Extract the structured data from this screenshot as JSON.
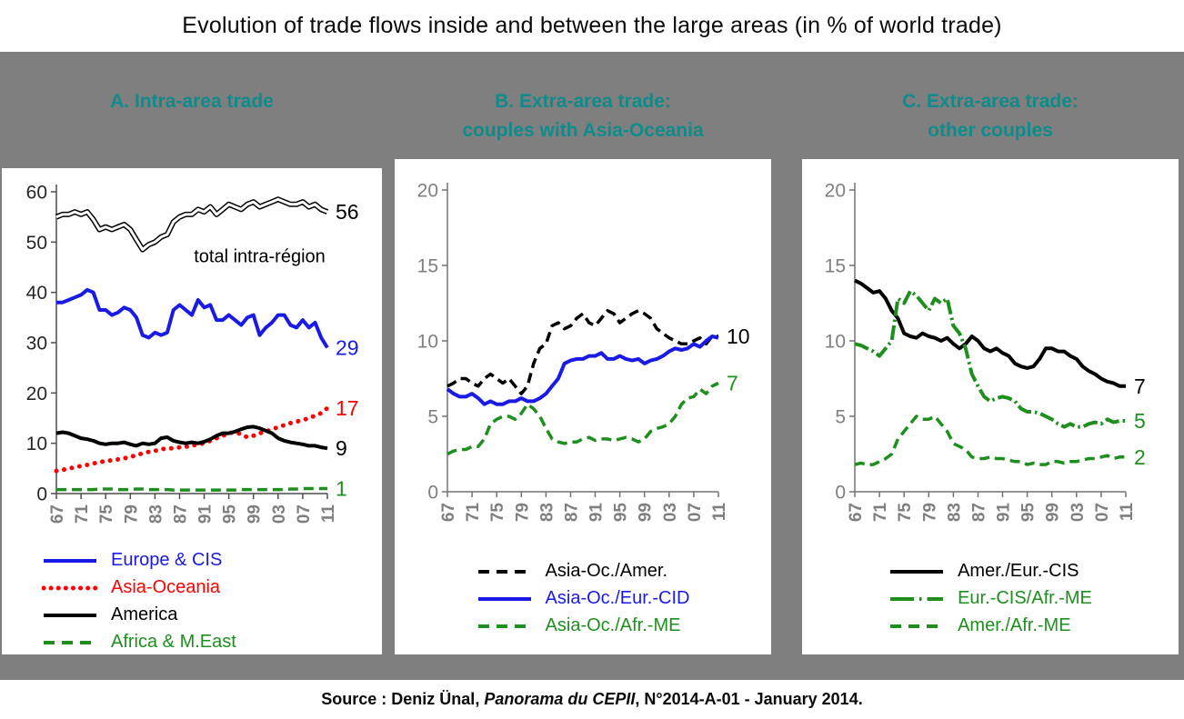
{
  "title": "Evolution of trade flows inside and between the large areas (in % of world trade)",
  "source": {
    "prefix": "Source : Deniz Ünal, ",
    "italic": "Panorama du CEPII",
    "suffix": ", N°2014-A-01 - January 2014."
  },
  "colors": {
    "background": "#7f7f7f",
    "panel_background": "#ffffff",
    "heading_teal": "#0e8c8c",
    "blue": "#1a1ae6",
    "red": "#ff0000",
    "green": "#1e8f1e",
    "black": "#000000",
    "tick_gray": "#7f7f7f"
  },
  "chart_data": [
    {
      "type": "line",
      "title_line1": "A. Intra-area trade",
      "title_line2": "",
      "x_start": 1967,
      "x_tick_years": [
        1967,
        1971,
        1975,
        1979,
        1983,
        1987,
        1991,
        1995,
        1999,
        2003,
        2007,
        2011
      ],
      "x_tick_labels": [
        "67",
        "71",
        "75",
        "79",
        "83",
        "87",
        "91",
        "95",
        "99",
        "03",
        "07",
        "11"
      ],
      "ylim": [
        0,
        60
      ],
      "yticks": [
        0,
        10,
        20,
        30,
        40,
        50,
        60
      ],
      "ytick_color": "#262626",
      "axis_color": "#4d4d4d",
      "grid": false,
      "legend_position": "bottom",
      "legend_align": "left",
      "annotation": {
        "text": "total intra-région",
        "x": 2000,
        "y": 46
      },
      "series": [
        {
          "name": "total intra-région",
          "style": "double",
          "color": "#000000",
          "end_label": "56",
          "values": [
            55,
            55.5,
            55.5,
            56,
            55.5,
            56,
            54.5,
            52.5,
            53,
            52.5,
            53,
            53.5,
            52.5,
            50.5,
            48.5,
            49.5,
            50,
            51,
            51.5,
            54,
            55,
            55.5,
            55.5,
            56.5,
            56,
            57,
            55.5,
            56.5,
            57.5,
            57,
            56.5,
            57.5,
            58,
            57,
            57.5,
            58,
            58.5,
            58,
            57.5,
            57.5,
            58,
            57,
            57.5,
            56.5,
            56
          ]
        },
        {
          "name": "Europe & CIS",
          "style": "solid",
          "color": "#1a1ae6",
          "end_label": "29",
          "values": [
            38,
            38,
            38.5,
            39,
            39.5,
            40.5,
            40,
            36.5,
            36.5,
            35.5,
            36,
            37,
            36.5,
            35,
            31.5,
            31,
            32,
            31.5,
            32,
            36.5,
            37.5,
            36.5,
            35.5,
            38.5,
            37,
            37.5,
            34.5,
            34.5,
            35.5,
            34.5,
            33.5,
            35,
            35.5,
            31.5,
            33,
            34,
            35.5,
            35.5,
            33.5,
            33,
            34.5,
            33,
            34,
            31,
            29
          ]
        },
        {
          "name": "Asia-Oceania",
          "style": "dotted",
          "color": "#ff0000",
          "end_label": "17",
          "values": [
            4.5,
            4.7,
            5,
            5.2,
            5.5,
            5.7,
            6,
            6.2,
            6.5,
            6.6,
            6.8,
            7,
            7.3,
            7.6,
            8,
            8.3,
            8.5,
            8.8,
            9,
            9,
            9.2,
            9.3,
            9.5,
            9.8,
            10,
            10.5,
            11,
            11.5,
            12,
            12.2,
            11.8,
            11.2,
            11.5,
            12,
            12.3,
            12.8,
            13.2,
            13.6,
            14,
            14.3,
            14.6,
            15,
            15.5,
            16,
            17
          ]
        },
        {
          "name": "America",
          "style": "solid",
          "color": "#000000",
          "end_label": "9",
          "values": [
            12,
            12.2,
            12,
            11.5,
            11,
            10.8,
            10.5,
            10,
            9.8,
            10,
            10,
            10.2,
            9.8,
            9.5,
            10,
            9.8,
            10,
            11,
            11.2,
            10.5,
            10.2,
            10,
            10.2,
            10,
            10.3,
            10.8,
            11.5,
            12,
            12,
            12.3,
            12.8,
            13.2,
            13.3,
            13,
            12.5,
            12,
            11,
            10.5,
            10.2,
            10,
            9.8,
            9.5,
            9.5,
            9.2,
            9
          ]
        },
        {
          "name": "Africa & M.East",
          "style": "dashed",
          "color": "#1e8f1e",
          "end_label": "1",
          "values": [
            0.8,
            0.8,
            0.8,
            0.8,
            0.8,
            0.8,
            0.8,
            0.9,
            0.9,
            0.9,
            0.8,
            0.8,
            0.8,
            0.9,
            0.9,
            0.8,
            0.8,
            0.8,
            0.8,
            0.7,
            0.7,
            0.7,
            0.7,
            0.7,
            0.7,
            0.7,
            0.7,
            0.7,
            0.7,
            0.7,
            0.8,
            0.8,
            0.8,
            0.8,
            0.8,
            0.8,
            0.8,
            0.8,
            0.9,
            0.9,
            1,
            1,
            1,
            1,
            1
          ]
        }
      ],
      "legend": [
        {
          "label": "Europe & CIS",
          "color": "#1a1ae6",
          "style": "solid"
        },
        {
          "label": "Asia-Oceania",
          "color": "#ff0000",
          "style": "dotted"
        },
        {
          "label": "America",
          "color": "#000000",
          "style": "solid"
        },
        {
          "label": "Africa & M.East",
          "color": "#1e8f1e",
          "style": "dashed"
        }
      ]
    },
    {
      "type": "line",
      "title_line1": "B. Extra-area trade:",
      "title_line2": "couples with Asia-Oceania",
      "x_start": 1967,
      "x_tick_years": [
        1967,
        1971,
        1975,
        1979,
        1983,
        1987,
        1991,
        1995,
        1999,
        2003,
        2007,
        2011
      ],
      "x_tick_labels": [
        "67",
        "71",
        "75",
        "79",
        "83",
        "87",
        "91",
        "95",
        "99",
        "03",
        "07",
        "11"
      ],
      "ylim": [
        0,
        20
      ],
      "yticks": [
        0,
        5,
        10,
        15,
        20
      ],
      "ytick_color": "#7f7f7f",
      "axis_color": "#737373",
      "grid": false,
      "legend_position": "bottom",
      "legend_align": "center",
      "annotation": null,
      "series": [
        {
          "name": "Asia-Oc./Amer.",
          "style": "dashed",
          "color": "#000000",
          "end_label": "10",
          "values": [
            7,
            7.2,
            7.5,
            7.5,
            7.2,
            7,
            7.5,
            7.8,
            7.5,
            7.2,
            7.5,
            7,
            6.5,
            7,
            8.5,
            9.5,
            9.8,
            11,
            11.2,
            10.8,
            11,
            11.5,
            11.8,
            11.2,
            11,
            11.5,
            12,
            11.8,
            11.2,
            11.5,
            11.8,
            12,
            11.8,
            11.5,
            10.8,
            10.5,
            10.2,
            10,
            9.8,
            9.8,
            10,
            10.2,
            9.8,
            10.3,
            10.3
          ]
        },
        {
          "name": "Asia-Oc./Eur.-CID",
          "style": "solid",
          "color": "#1a1ae6",
          "end_label": null,
          "values": [
            6.8,
            6.5,
            6.3,
            6.3,
            6.5,
            6.2,
            5.8,
            6,
            5.8,
            5.8,
            6,
            6,
            6.2,
            6,
            6,
            6.2,
            6.5,
            7,
            7.5,
            8.5,
            8.7,
            8.8,
            8.8,
            9,
            9,
            9.2,
            8.8,
            8.8,
            9,
            8.8,
            8.7,
            8.8,
            8.5,
            8.7,
            8.8,
            9,
            9.3,
            9.5,
            9.4,
            9.5,
            9.8,
            9.6,
            10,
            10.3,
            10.2
          ]
        },
        {
          "name": "Asia-Oc./Afr.-ME",
          "style": "dashed",
          "color": "#1e8f1e",
          "end_label": "7",
          "values": [
            2.5,
            2.7,
            2.8,
            2.8,
            3,
            3,
            3.5,
            4.5,
            4.8,
            5,
            5,
            4.8,
            5.2,
            5.8,
            5.5,
            5,
            4.2,
            3.5,
            3.3,
            3.2,
            3.3,
            3.3,
            3.5,
            3.6,
            3.4,
            3.5,
            3.5,
            3.4,
            3.5,
            3.6,
            3.5,
            3.3,
            3.5,
            4,
            4.2,
            4.3,
            4.5,
            5,
            5.8,
            6.2,
            6.3,
            6.8,
            6.5,
            7,
            7.2
          ]
        }
      ],
      "legend": [
        {
          "label": "Asia-Oc./Amer.",
          "color": "#000000",
          "style": "dashed"
        },
        {
          "label": "Asia-Oc./Eur.-CID",
          "color": "#1a1ae6",
          "style": "solid"
        },
        {
          "label": "Asia-Oc./Afr.-ME",
          "color": "#1e8f1e",
          "style": "dashed"
        }
      ]
    },
    {
      "type": "line",
      "title_line1": "C. Extra-area trade:",
      "title_line2": "other couples",
      "x_start": 1967,
      "x_tick_years": [
        1967,
        1971,
        1975,
        1979,
        1983,
        1987,
        1991,
        1995,
        1999,
        2003,
        2007,
        2011
      ],
      "x_tick_labels": [
        "67",
        "71",
        "75",
        "79",
        "83",
        "87",
        "91",
        "95",
        "99",
        "03",
        "07",
        "11"
      ],
      "ylim": [
        0,
        20
      ],
      "yticks": [
        0,
        5,
        10,
        15,
        20
      ],
      "ytick_color": "#7f7f7f",
      "axis_color": "#737373",
      "grid": false,
      "legend_position": "bottom",
      "legend_align": "center",
      "annotation": null,
      "series": [
        {
          "name": "Amer./Eur.-CIS",
          "style": "solid",
          "color": "#000000",
          "end_label": "7",
          "values": [
            14,
            13.8,
            13.5,
            13.2,
            13.3,
            12.8,
            12,
            11.5,
            10.5,
            10.3,
            10.2,
            10.5,
            10.3,
            10.2,
            10,
            10.2,
            9.8,
            9.5,
            9.8,
            10.3,
            10,
            9.5,
            9.3,
            9.5,
            9.2,
            9,
            8.5,
            8.3,
            8.2,
            8.3,
            8.8,
            9.5,
            9.5,
            9.3,
            9.3,
            9,
            8.8,
            8.3,
            8,
            7.8,
            7.5,
            7.3,
            7.2,
            7,
            7
          ]
        },
        {
          "name": "Eur.-CIS/Afr.-ME",
          "style": "dashdot",
          "color": "#1e8f1e",
          "end_label": "5",
          "values": [
            9.8,
            9.7,
            9.5,
            9.3,
            9,
            9.5,
            10,
            12.8,
            12.5,
            13.3,
            13,
            12.5,
            12,
            12.8,
            12.5,
            12.8,
            11,
            10.5,
            9.5,
            7.8,
            7,
            6.3,
            6,
            6.2,
            6.3,
            6.2,
            6,
            5.5,
            5.3,
            5.3,
            5.2,
            5,
            4.8,
            4.5,
            4.3,
            4.5,
            4.3,
            4.3,
            4.5,
            4.6,
            4.5,
            4.8,
            4.6,
            4.7,
            4.7
          ]
        },
        {
          "name": "Amer./Afr.-ME",
          "style": "dashed",
          "color": "#1e8f1e",
          "end_label": "2",
          "values": [
            1.8,
            1.9,
            1.8,
            1.8,
            2,
            2.2,
            2.5,
            3.5,
            4,
            4.5,
            5,
            4.8,
            4.8,
            5,
            4.5,
            4,
            3.2,
            3,
            2.8,
            2.3,
            2.2,
            2.2,
            2.3,
            2.2,
            2.2,
            2.1,
            2,
            2,
            1.8,
            1.9,
            1.8,
            1.8,
            2,
            2,
            1.9,
            2,
            2,
            2.1,
            2.2,
            2.2,
            2.3,
            2.4,
            2.2,
            2.3,
            2.3
          ]
        }
      ],
      "legend": [
        {
          "label": "Amer./Eur.-CIS",
          "color": "#000000",
          "style": "solid"
        },
        {
          "label": "Eur.-CIS/Afr.-ME",
          "color": "#1e8f1e",
          "style": "dashdot"
        },
        {
          "label": "Amer./Afr.-ME",
          "color": "#1e8f1e",
          "style": "dashed"
        }
      ]
    }
  ]
}
